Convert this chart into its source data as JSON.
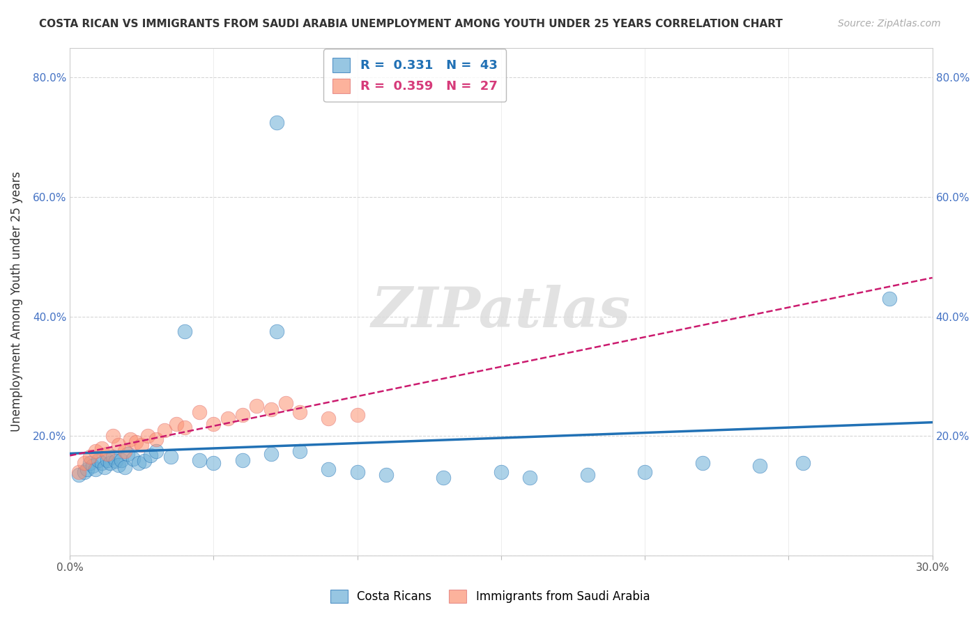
{
  "title": "COSTA RICAN VS IMMIGRANTS FROM SAUDI ARABIA UNEMPLOYMENT AMONG YOUTH UNDER 25 YEARS CORRELATION CHART",
  "source": "Source: ZipAtlas.com",
  "ylabel": "Unemployment Among Youth under 25 years",
  "ytick_positions": [
    0.0,
    0.2,
    0.4,
    0.6,
    0.8
  ],
  "xlim": [
    0.0,
    0.3
  ],
  "ylim": [
    0.0,
    0.85
  ],
  "legend1_R": "0.331",
  "legend1_N": "43",
  "legend2_R": "0.359",
  "legend2_N": "27",
  "blue_color": "#6baed6",
  "pink_color": "#fc9272",
  "blue_line_color": "#2171b5",
  "pink_line_color": "#cb1a6e",
  "watermark": "ZIPatlas",
  "background_color": "#ffffff",
  "legend_text_color": "#2171b5",
  "legend2_text_color": "#d63b7a",
  "costa_ricans_x": [
    0.003,
    0.005,
    0.006,
    0.007,
    0.008,
    0.009,
    0.01,
    0.011,
    0.012,
    0.013,
    0.014,
    0.015,
    0.016,
    0.017,
    0.018,
    0.019,
    0.02,
    0.022,
    0.024,
    0.026,
    0.028,
    0.03,
    0.035,
    0.04,
    0.045,
    0.05,
    0.06,
    0.07,
    0.072,
    0.072,
    0.08,
    0.09,
    0.1,
    0.11,
    0.13,
    0.15,
    0.16,
    0.18,
    0.2,
    0.22,
    0.24,
    0.255,
    0.285
  ],
  "costa_ricans_y": [
    0.135,
    0.14,
    0.145,
    0.155,
    0.15,
    0.145,
    0.16,
    0.155,
    0.148,
    0.16,
    0.155,
    0.165,
    0.158,
    0.152,
    0.16,
    0.148,
    0.17,
    0.162,
    0.155,
    0.158,
    0.168,
    0.175,
    0.165,
    0.375,
    0.16,
    0.155,
    0.16,
    0.17,
    0.725,
    0.375,
    0.175,
    0.145,
    0.14,
    0.135,
    0.13,
    0.14,
    0.13,
    0.135,
    0.14,
    0.155,
    0.15,
    0.155,
    0.43
  ],
  "saudi_x": [
    0.003,
    0.005,
    0.007,
    0.009,
    0.011,
    0.013,
    0.015,
    0.017,
    0.019,
    0.021,
    0.023,
    0.025,
    0.027,
    0.03,
    0.033,
    0.037,
    0.04,
    0.045,
    0.05,
    0.055,
    0.06,
    0.065,
    0.07,
    0.075,
    0.08,
    0.09,
    0.1
  ],
  "saudi_y": [
    0.14,
    0.155,
    0.165,
    0.175,
    0.18,
    0.17,
    0.2,
    0.185,
    0.175,
    0.195,
    0.19,
    0.185,
    0.2,
    0.195,
    0.21,
    0.22,
    0.215,
    0.24,
    0.22,
    0.23,
    0.235,
    0.25,
    0.245,
    0.255,
    0.24,
    0.23,
    0.235
  ]
}
